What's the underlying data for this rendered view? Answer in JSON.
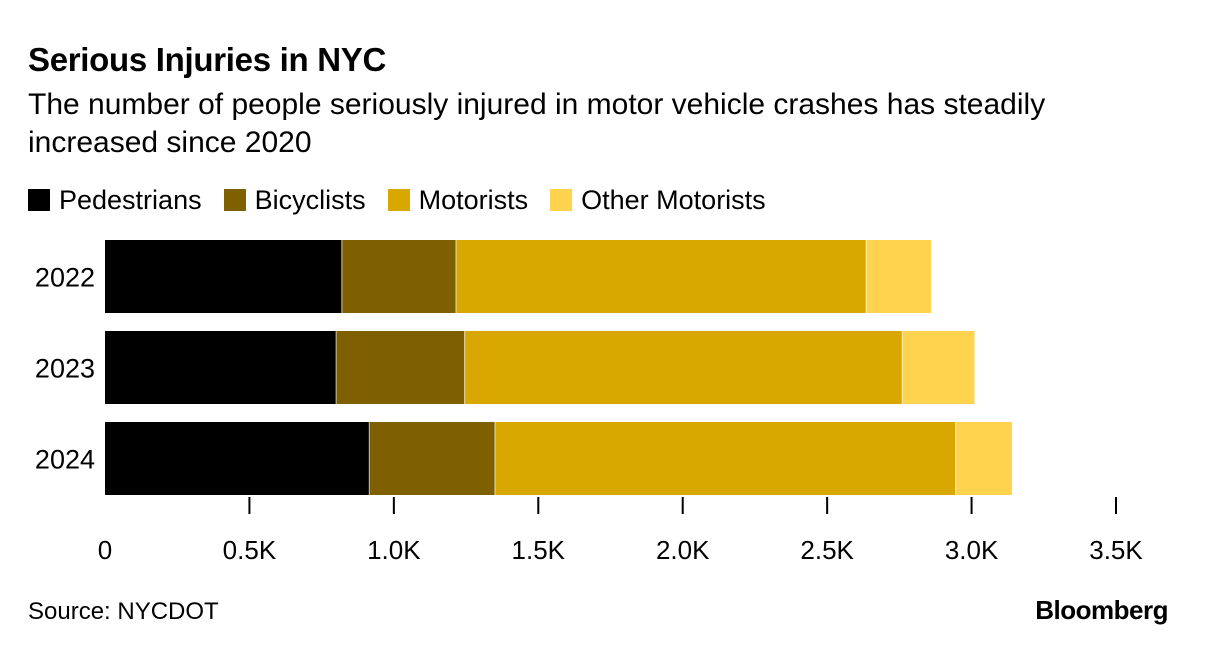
{
  "header": {
    "title": "Serious Injuries in NYC",
    "subtitle": "The number of people seriously injured in motor vehicle crashes has steadily increased since 2020"
  },
  "legend": [
    {
      "label": "Pedestrians",
      "color": "#000000"
    },
    {
      "label": "Bicyclists",
      "color": "#7f6000"
    },
    {
      "label": "Motorists",
      "color": "#d9a800"
    },
    {
      "label": "Other Motorists",
      "color": "#ffd34d"
    }
  ],
  "footer": {
    "source": "Source: NYCDOT",
    "brand": "Bloomberg"
  },
  "chart_data": {
    "type": "bar",
    "orientation": "horizontal",
    "stacked": true,
    "title": "Serious Injuries in NYC",
    "subtitle": "The number of people seriously injured in motor vehicle crashes has steadily increased since 2020",
    "categories": [
      "2022",
      "2023",
      "2024"
    ],
    "series": [
      {
        "name": "Pedestrians",
        "color": "#000000",
        "values": [
          820,
          800,
          915
        ]
      },
      {
        "name": "Bicyclists",
        "color": "#7f6000",
        "values": [
          395,
          445,
          435
        ]
      },
      {
        "name": "Motorists",
        "color": "#d9a800",
        "values": [
          1420,
          1515,
          1595
        ]
      },
      {
        "name": "Other Motorists",
        "color": "#ffd34d",
        "values": [
          225,
          250,
          195
        ]
      }
    ],
    "xlim": [
      0,
      3500
    ],
    "xticks": [
      0,
      500,
      1000,
      1500,
      2000,
      2500,
      3000,
      3500
    ],
    "xtick_labels": [
      "0",
      "0.5K",
      "1.0K",
      "1.5K",
      "2.0K",
      "2.5K",
      "3.0K",
      "3.5K"
    ],
    "xlabel": "",
    "ylabel": "",
    "grid": false,
    "legend_position": "top-left"
  }
}
